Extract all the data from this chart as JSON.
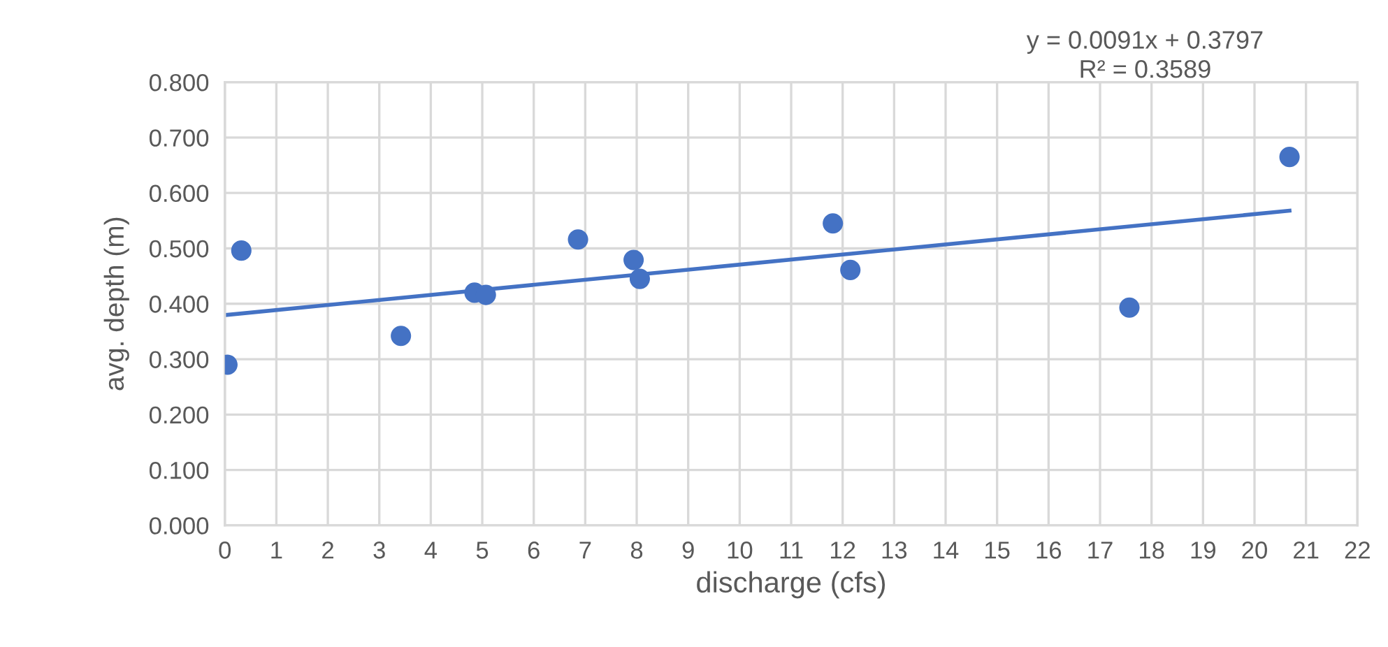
{
  "chart_data": {
    "type": "scatter",
    "xlabel": "discharge (cfs)",
    "ylabel": "avg. depth (m)",
    "xlim": [
      0,
      22
    ],
    "xticks": [
      0,
      1,
      2,
      3,
      4,
      5,
      6,
      7,
      8,
      9,
      10,
      11,
      12,
      13,
      14,
      15,
      16,
      17,
      18,
      19,
      20,
      21,
      22
    ],
    "ylim": [
      0,
      0.8
    ],
    "yticks": [
      {
        "value": 0,
        "label": "0.000"
      },
      {
        "value": 0.1,
        "label": "0.100"
      },
      {
        "value": 0.2,
        "label": "0.200"
      },
      {
        "value": 0.3,
        "label": "0.300"
      },
      {
        "value": 0.4,
        "label": "0.400"
      },
      {
        "value": 0.5,
        "label": "0.500"
      },
      {
        "value": 0.6,
        "label": "0.600"
      },
      {
        "value": 0.7,
        "label": "0.700"
      },
      {
        "value": 0.8,
        "label": "0.800"
      }
    ],
    "grid": true,
    "series": [
      {
        "marker": "circle",
        "color": "#4472c4",
        "x": [
          0.05,
          0.32,
          3.42,
          4.85,
          5.07,
          6.86,
          7.94,
          8.06,
          11.81,
          12.15,
          17.57,
          20.68
        ],
        "values": [
          0.29,
          0.496,
          0.342,
          0.42,
          0.416,
          0.516,
          0.479,
          0.445,
          0.545,
          0.461,
          0.393,
          0.665
        ]
      },
      {
        "type": "line",
        "color": "#4472c4",
        "x": [
          0.05,
          20.68
        ],
        "values": [
          0.38,
          0.568
        ]
      }
    ],
    "annotations": [
      "y = 0.0091x + 0.3797",
      "R² = 0.3589"
    ]
  }
}
